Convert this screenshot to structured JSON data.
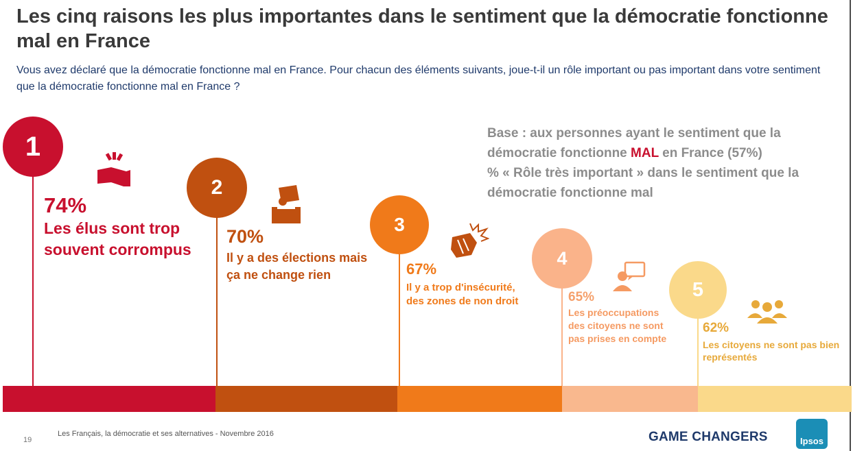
{
  "header": {
    "title": "Les cinq raisons les plus importantes dans le sentiment que la démocratie fonctionne mal en France",
    "subtitle": "Vous avez déclaré que la démocratie fonctionne mal en France. Pour chacun des éléments suivants, joue-t-il un rôle important ou pas important dans votre sentiment que la démocratie fonctionne mal en France ?"
  },
  "base_note": {
    "line1_pre": "Base : aux personnes ayant le sentiment que la démocratie fonctionne ",
    "line1_highlight": "MAL",
    "line1_post": " en France (57%)",
    "line2": "% « Rôle très important » dans le sentiment que la démocratie fonctionne mal"
  },
  "chart_data": {
    "type": "bar",
    "title": "Les cinq raisons les plus importantes dans le sentiment que la démocratie fonctionne mal en France",
    "categories": [
      "Les élus sont trop souvent corrompus",
      "Il y a des élections mais ça ne change rien",
      "Il y a trop d'insécurité, des zones de non droit",
      "Les préoccupations des citoyens ne sont pas prises en compte",
      "Les citoyens ne sont pas bien représentés"
    ],
    "ranks": [
      "1",
      "2",
      "3",
      "4",
      "5"
    ],
    "values": [
      74,
      70,
      67,
      65,
      62
    ],
    "value_labels": [
      "74%",
      "70%",
      "67%",
      "65%",
      "62%"
    ],
    "colors": [
      "#c8102e",
      "#c05010",
      "#f07a1a",
      "#f9b88e",
      "#fad98a"
    ],
    "icons": [
      "hand-money-icon",
      "ballot-box-icon",
      "fist-icon",
      "speech-person-icon",
      "group-people-icon"
    ],
    "ylim": [
      0,
      100
    ]
  },
  "footer": {
    "page_number": "19",
    "source": "Les Français, la démocratie et ses alternatives - Novembre 2016",
    "brand": "GAME CHANGERS",
    "logo": "Ipsos"
  }
}
